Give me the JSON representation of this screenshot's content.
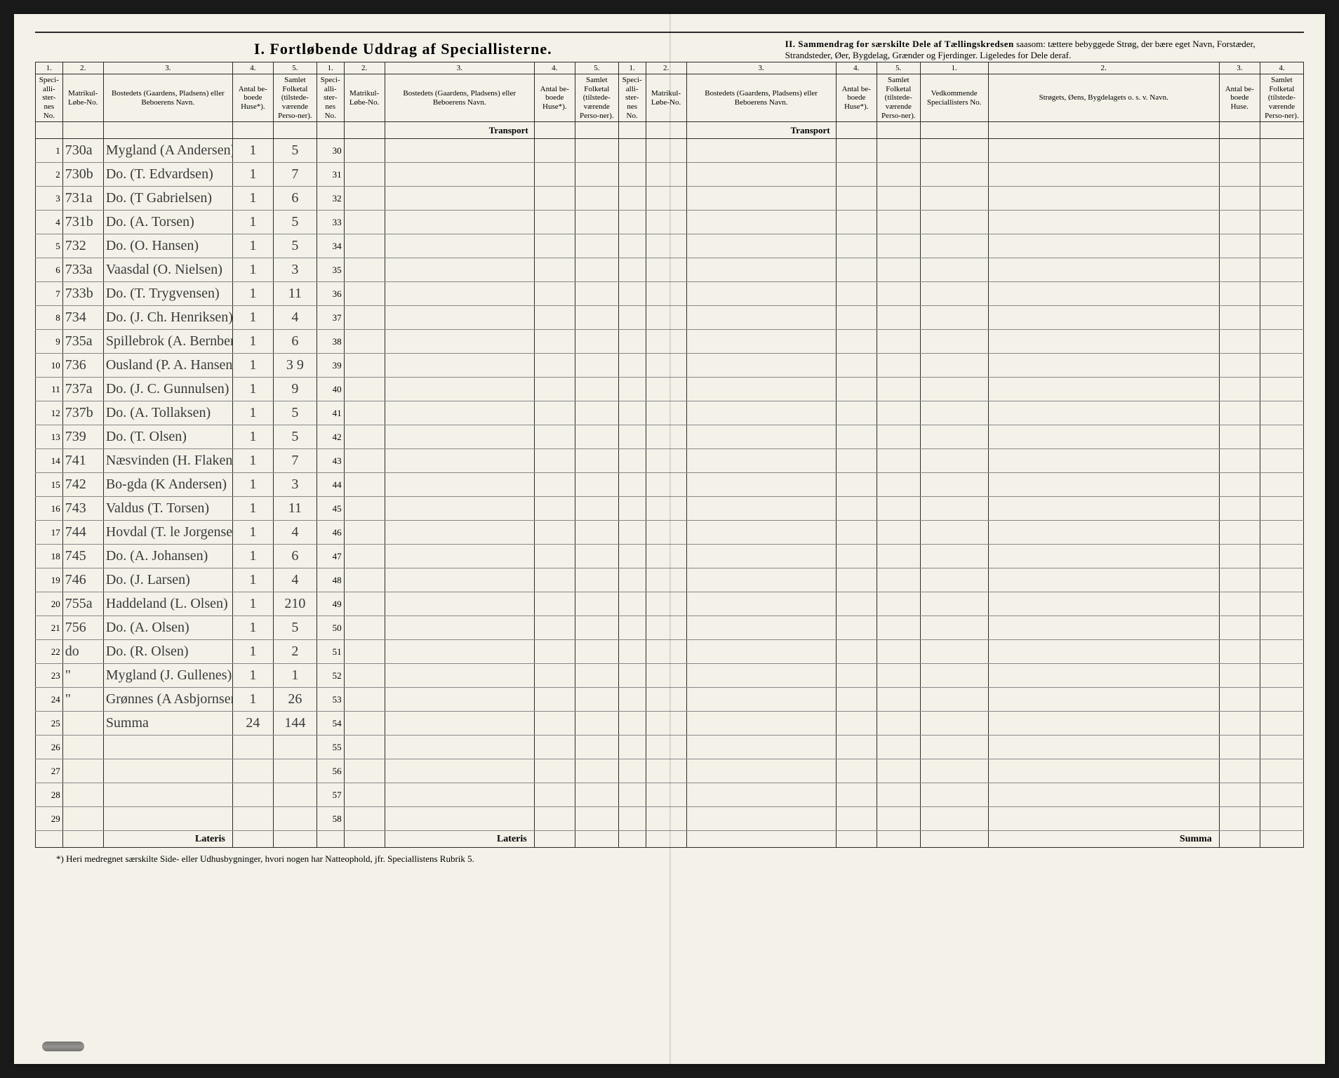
{
  "title_left": "I.  Fortløbende Uddrag af Speciallisterne.",
  "title_right_bold": "II.  Sammendrag for særskilte Dele af Tællingskredsen",
  "title_right_rest": " saasom: tættere bebyggede Strøg, der bære eget Navn, Forstæder, Strandsteder, Øer, Bygdelag, Grænder og Fjerdinger. Ligeledes for Dele deraf.",
  "col_nums": [
    "1.",
    "2.",
    "3.",
    "4.",
    "5.",
    "1.",
    "2.",
    "3.",
    "4.",
    "5.",
    "1.",
    "2.",
    "3.",
    "4.",
    "5.",
    "1.",
    "2.",
    "3.",
    "4."
  ],
  "hdr": {
    "no": "Speci-alli-ster-nes No.",
    "mat": "Matrikul-Løbe-No.",
    "bost": "Bostedets (Gaardens, Pladsens) eller Beboerens Navn.",
    "huse": "Antal be-boede Huse*).",
    "folk": "Samlet Folketal (tilstede-værende Perso-ner).",
    "ved": "Vedkommende Speciallisters No.",
    "str": "Strøgets, Øens, Bygdelagets o. s. v. Navn.",
    "huse3": "Antal be-boede Huse.",
    "folk3": "Samlet Folketal (tilstede-værende Perso-ner)."
  },
  "transport": "Transport",
  "lateris": "Lateris",
  "summa": "Summa",
  "footnote": "*) Heri medregnet særskilte Side- eller Udhusbygninger, hvori nogen har Natteophold, jfr. Speciallistens Rubrik 5.",
  "rows": [
    {
      "n": "1",
      "mat": "730a",
      "bost": "Mygland (A Andersen)",
      "h": "1",
      "f": "5",
      "n2": "30"
    },
    {
      "n": "2",
      "mat": "730b",
      "bost": "Do.  (T. Edvardsen)",
      "h": "1",
      "f": "7",
      "n2": "31"
    },
    {
      "n": "3",
      "mat": "731a",
      "bost": "Do.  (T Gabrielsen)",
      "h": "1",
      "f": "6",
      "n2": "32"
    },
    {
      "n": "4",
      "mat": "731b",
      "bost": "Do.  (A. Torsen)",
      "h": "1",
      "f": "5",
      "n2": "33"
    },
    {
      "n": "5",
      "mat": "732",
      "bost": "Do.  (O. Hansen)",
      "h": "1",
      "f": "5",
      "n2": "34"
    },
    {
      "n": "6",
      "mat": "733a",
      "bost": "Vaasdal (O. Nielsen)",
      "h": "1",
      "f": "3",
      "n2": "35"
    },
    {
      "n": "7",
      "mat": "733b",
      "bost": "Do.  (T. Trygvensen)",
      "h": "1",
      "f": "11",
      "n2": "36"
    },
    {
      "n": "8",
      "mat": "734",
      "bost": "Do.  (J. Ch. Henriksen)",
      "h": "1",
      "f": "4",
      "n2": "37"
    },
    {
      "n": "9",
      "mat": "735a",
      "bost": "Spillebrok (A. Bernberg)",
      "h": "1",
      "f": "6",
      "n2": "38"
    },
    {
      "n": "10",
      "mat": "736",
      "bost": "Ousland (P. A. Hansen)",
      "h": "1",
      "f": "3 9",
      "n2": "39"
    },
    {
      "n": "11",
      "mat": "737a",
      "bost": "Do. (J. C. Gunnulsen)",
      "h": "1",
      "f": "9",
      "n2": "40"
    },
    {
      "n": "12",
      "mat": "737b",
      "bost": "Do.  (A. Tollaksen)",
      "h": "1",
      "f": "5",
      "n2": "41"
    },
    {
      "n": "13",
      "mat": "739",
      "bost": "Do.  (T. Olsen)",
      "h": "1",
      "f": "5",
      "n2": "42"
    },
    {
      "n": "14",
      "mat": "741",
      "bost": "Næsvinden (H. Flaken)",
      "h": "1",
      "f": "7",
      "n2": "43"
    },
    {
      "n": "15",
      "mat": "742",
      "bost": "Bo-gda (K Andersen)",
      "h": "1",
      "f": "3",
      "n2": "44"
    },
    {
      "n": "16",
      "mat": "743",
      "bost": "Valdus (T. Torsen)",
      "h": "1",
      "f": "11",
      "n2": "45"
    },
    {
      "n": "17",
      "mat": "744",
      "bost": "Hovdal (T. le Jorgensen)",
      "h": "1",
      "f": "4",
      "n2": "46"
    },
    {
      "n": "18",
      "mat": "745",
      "bost": "Do.  (A. Johansen)",
      "h": "1",
      "f": "6",
      "n2": "47"
    },
    {
      "n": "19",
      "mat": "746",
      "bost": "Do.  (J. Larsen)",
      "h": "1",
      "f": "4",
      "n2": "48"
    },
    {
      "n": "20",
      "mat": "755a",
      "bost": "Haddeland (L. Olsen)",
      "h": "1",
      "f": "210",
      "n2": "49"
    },
    {
      "n": "21",
      "mat": "756",
      "bost": "Do.  (A. Olsen)",
      "h": "1",
      "f": "5",
      "n2": "50"
    },
    {
      "n": "22",
      "mat": "do",
      "bost": "Do.  (R. Olsen)",
      "h": "1",
      "f": "2",
      "n2": "51"
    },
    {
      "n": "23",
      "mat": "\"",
      "bost": "Mygland (J. Gullenes)",
      "h": "1",
      "f": "1",
      "n2": "52"
    },
    {
      "n": "24",
      "mat": "\"",
      "bost": "Grønnes (A Asbjornsen)",
      "h": "1",
      "f": "26",
      "n2": "53"
    },
    {
      "n": "25",
      "mat": "",
      "bost": "Summa",
      "h": "24",
      "f": "144",
      "n2": "54"
    },
    {
      "n": "26",
      "mat": "",
      "bost": "",
      "h": "",
      "f": "",
      "n2": "55"
    },
    {
      "n": "27",
      "mat": "",
      "bost": "",
      "h": "",
      "f": "",
      "n2": "56"
    },
    {
      "n": "28",
      "mat": "",
      "bost": "",
      "h": "",
      "f": "",
      "n2": "57"
    },
    {
      "n": "29",
      "mat": "",
      "bost": "",
      "h": "",
      "f": "",
      "n2": "58"
    }
  ]
}
